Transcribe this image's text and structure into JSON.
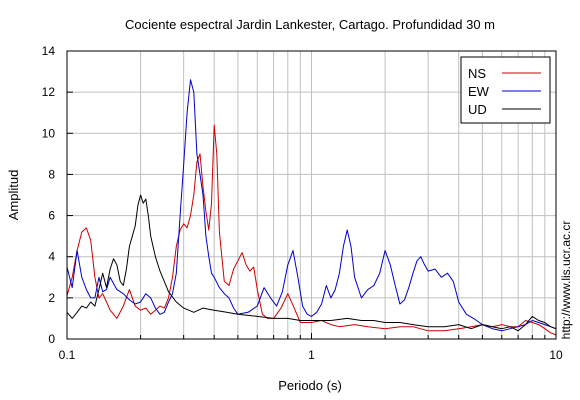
{
  "chart_data": {
    "type": "line",
    "title": "Cociente espectral Jardin Lankester, Cartago. Profundidad 30 m",
    "xlabel": "Periodo (s)",
    "ylabel": "Amplitud",
    "x_scale": "log",
    "xlim": [
      0.1,
      10
    ],
    "ylim": [
      0,
      14
    ],
    "x_ticks": [
      0.1,
      1,
      10
    ],
    "x_tick_labels": [
      "0.1",
      "1",
      "10"
    ],
    "y_ticks": [
      0,
      2,
      4,
      6,
      8,
      10,
      12,
      14
    ],
    "y_tick_labels": [
      "0",
      "2",
      "4",
      "6",
      "8",
      "10",
      "12",
      "14"
    ],
    "grid": true,
    "legend_position": "top-right",
    "watermark": "http://www.lis.ucr.ac.cr",
    "series": [
      {
        "name": "NS",
        "color": "#cc0000",
        "points": [
          [
            0.1,
            2.1
          ],
          [
            0.105,
            3.0
          ],
          [
            0.11,
            4.3
          ],
          [
            0.115,
            5.2
          ],
          [
            0.12,
            5.4
          ],
          [
            0.125,
            4.8
          ],
          [
            0.13,
            3.0
          ],
          [
            0.135,
            2.0
          ],
          [
            0.14,
            2.2
          ],
          [
            0.145,
            1.8
          ],
          [
            0.15,
            1.4
          ],
          [
            0.16,
            1.0
          ],
          [
            0.17,
            1.6
          ],
          [
            0.18,
            2.4
          ],
          [
            0.19,
            1.6
          ],
          [
            0.2,
            1.4
          ],
          [
            0.21,
            1.5
          ],
          [
            0.22,
            1.2
          ],
          [
            0.23,
            1.4
          ],
          [
            0.24,
            1.6
          ],
          [
            0.25,
            1.5
          ],
          [
            0.26,
            2.0
          ],
          [
            0.27,
            3.0
          ],
          [
            0.28,
            4.5
          ],
          [
            0.29,
            5.3
          ],
          [
            0.3,
            5.6
          ],
          [
            0.31,
            5.4
          ],
          [
            0.32,
            6.0
          ],
          [
            0.33,
            7.0
          ],
          [
            0.34,
            8.6
          ],
          [
            0.35,
            9.0
          ],
          [
            0.36,
            7.4
          ],
          [
            0.37,
            6.2
          ],
          [
            0.38,
            5.3
          ],
          [
            0.39,
            6.6
          ],
          [
            0.4,
            10.4
          ],
          [
            0.41,
            9.0
          ],
          [
            0.42,
            5.2
          ],
          [
            0.44,
            2.8
          ],
          [
            0.46,
            2.6
          ],
          [
            0.48,
            3.4
          ],
          [
            0.5,
            3.8
          ],
          [
            0.52,
            4.2
          ],
          [
            0.54,
            3.6
          ],
          [
            0.56,
            3.3
          ],
          [
            0.58,
            3.5
          ],
          [
            0.6,
            2.4
          ],
          [
            0.63,
            1.2
          ],
          [
            0.66,
            1.0
          ],
          [
            0.7,
            1.0
          ],
          [
            0.75,
            1.5
          ],
          [
            0.8,
            2.2
          ],
          [
            0.85,
            1.5
          ],
          [
            0.9,
            0.8
          ],
          [
            1.0,
            0.8
          ],
          [
            1.1,
            0.9
          ],
          [
            1.2,
            0.7
          ],
          [
            1.3,
            0.6
          ],
          [
            1.5,
            0.7
          ],
          [
            1.7,
            0.6
          ],
          [
            2.0,
            0.5
          ],
          [
            2.3,
            0.6
          ],
          [
            2.6,
            0.6
          ],
          [
            3.0,
            0.4
          ],
          [
            3.5,
            0.4
          ],
          [
            4.0,
            0.5
          ],
          [
            4.5,
            0.6
          ],
          [
            5.0,
            0.7
          ],
          [
            5.5,
            0.6
          ],
          [
            6.0,
            0.7
          ],
          [
            6.5,
            0.6
          ],
          [
            7.0,
            0.6
          ],
          [
            7.5,
            0.9
          ],
          [
            8.0,
            0.8
          ],
          [
            8.5,
            0.7
          ],
          [
            9.0,
            0.5
          ],
          [
            9.5,
            0.3
          ],
          [
            10.0,
            0.2
          ]
        ]
      },
      {
        "name": "EW",
        "color": "#0000cc",
        "points": [
          [
            0.1,
            3.5
          ],
          [
            0.105,
            2.5
          ],
          [
            0.11,
            4.3
          ],
          [
            0.115,
            3.0
          ],
          [
            0.12,
            2.4
          ],
          [
            0.125,
            2.0
          ],
          [
            0.13,
            2.0
          ],
          [
            0.135,
            3.0
          ],
          [
            0.14,
            2.3
          ],
          [
            0.145,
            2.4
          ],
          [
            0.15,
            3.0
          ],
          [
            0.16,
            2.4
          ],
          [
            0.17,
            2.2
          ],
          [
            0.18,
            1.9
          ],
          [
            0.19,
            1.7
          ],
          [
            0.2,
            1.8
          ],
          [
            0.21,
            2.2
          ],
          [
            0.22,
            2.0
          ],
          [
            0.23,
            1.5
          ],
          [
            0.24,
            1.2
          ],
          [
            0.25,
            1.3
          ],
          [
            0.26,
            1.8
          ],
          [
            0.27,
            2.2
          ],
          [
            0.28,
            3.2
          ],
          [
            0.29,
            6.0
          ],
          [
            0.3,
            8.5
          ],
          [
            0.31,
            11.0
          ],
          [
            0.32,
            12.6
          ],
          [
            0.33,
            12.0
          ],
          [
            0.34,
            9.0
          ],
          [
            0.35,
            8.0
          ],
          [
            0.36,
            7.0
          ],
          [
            0.37,
            5.0
          ],
          [
            0.38,
            4.0
          ],
          [
            0.39,
            3.2
          ],
          [
            0.4,
            3.0
          ],
          [
            0.42,
            2.5
          ],
          [
            0.44,
            2.2
          ],
          [
            0.46,
            2.0
          ],
          [
            0.48,
            1.5
          ],
          [
            0.5,
            1.2
          ],
          [
            0.55,
            1.3
          ],
          [
            0.6,
            1.6
          ],
          [
            0.64,
            2.5
          ],
          [
            0.68,
            2.0
          ],
          [
            0.72,
            1.6
          ],
          [
            0.76,
            2.3
          ],
          [
            0.8,
            3.6
          ],
          [
            0.84,
            4.3
          ],
          [
            0.88,
            3.0
          ],
          [
            0.92,
            1.6
          ],
          [
            0.96,
            1.2
          ],
          [
            1.0,
            1.1
          ],
          [
            1.05,
            1.3
          ],
          [
            1.1,
            1.7
          ],
          [
            1.15,
            2.6
          ],
          [
            1.2,
            2.0
          ],
          [
            1.25,
            2.4
          ],
          [
            1.3,
            3.2
          ],
          [
            1.35,
            4.5
          ],
          [
            1.4,
            5.3
          ],
          [
            1.45,
            4.5
          ],
          [
            1.5,
            3.0
          ],
          [
            1.6,
            2.0
          ],
          [
            1.7,
            2.4
          ],
          [
            1.8,
            2.6
          ],
          [
            1.9,
            3.2
          ],
          [
            2.0,
            4.3
          ],
          [
            2.1,
            3.6
          ],
          [
            2.2,
            2.6
          ],
          [
            2.3,
            1.7
          ],
          [
            2.4,
            1.9
          ],
          [
            2.5,
            2.5
          ],
          [
            2.6,
            3.2
          ],
          [
            2.7,
            3.8
          ],
          [
            2.8,
            4.0
          ],
          [
            2.9,
            3.6
          ],
          [
            3.0,
            3.3
          ],
          [
            3.2,
            3.4
          ],
          [
            3.4,
            3.0
          ],
          [
            3.6,
            3.2
          ],
          [
            3.8,
            2.8
          ],
          [
            4.0,
            1.8
          ],
          [
            4.3,
            1.2
          ],
          [
            4.6,
            1.0
          ],
          [
            5.0,
            0.7
          ],
          [
            5.5,
            0.5
          ],
          [
            6.0,
            0.4
          ],
          [
            6.5,
            0.5
          ],
          [
            7.0,
            0.6
          ],
          [
            7.5,
            0.7
          ],
          [
            8.0,
            0.9
          ],
          [
            8.5,
            0.8
          ],
          [
            9.0,
            0.7
          ],
          [
            9.5,
            0.6
          ],
          [
            10.0,
            0.5
          ]
        ]
      },
      {
        "name": "UD",
        "color": "#000000",
        "points": [
          [
            0.1,
            1.3
          ],
          [
            0.105,
            1.0
          ],
          [
            0.11,
            1.3
          ],
          [
            0.115,
            1.6
          ],
          [
            0.12,
            1.5
          ],
          [
            0.125,
            1.8
          ],
          [
            0.13,
            1.6
          ],
          [
            0.135,
            2.4
          ],
          [
            0.14,
            3.2
          ],
          [
            0.145,
            2.5
          ],
          [
            0.15,
            3.4
          ],
          [
            0.155,
            3.9
          ],
          [
            0.16,
            3.6
          ],
          [
            0.165,
            2.8
          ],
          [
            0.17,
            2.6
          ],
          [
            0.175,
            3.4
          ],
          [
            0.18,
            4.5
          ],
          [
            0.19,
            5.5
          ],
          [
            0.195,
            6.5
          ],
          [
            0.2,
            7.0
          ],
          [
            0.205,
            6.6
          ],
          [
            0.21,
            6.8
          ],
          [
            0.215,
            6.0
          ],
          [
            0.22,
            5.0
          ],
          [
            0.23,
            4.0
          ],
          [
            0.24,
            3.3
          ],
          [
            0.25,
            2.8
          ],
          [
            0.26,
            2.3
          ],
          [
            0.28,
            1.8
          ],
          [
            0.3,
            1.5
          ],
          [
            0.33,
            1.3
          ],
          [
            0.36,
            1.5
          ],
          [
            0.4,
            1.4
          ],
          [
            0.45,
            1.3
          ],
          [
            0.5,
            1.2
          ],
          [
            0.6,
            1.1
          ],
          [
            0.7,
            1.0
          ],
          [
            0.8,
            1.0
          ],
          [
            0.9,
            0.9
          ],
          [
            1.0,
            0.9
          ],
          [
            1.2,
            0.9
          ],
          [
            1.4,
            1.0
          ],
          [
            1.6,
            0.9
          ],
          [
            1.8,
            0.9
          ],
          [
            2.0,
            0.8
          ],
          [
            2.3,
            0.8
          ],
          [
            2.6,
            0.7
          ],
          [
            3.0,
            0.6
          ],
          [
            3.5,
            0.6
          ],
          [
            4.0,
            0.7
          ],
          [
            4.5,
            0.5
          ],
          [
            5.0,
            0.7
          ],
          [
            5.5,
            0.6
          ],
          [
            6.0,
            0.5
          ],
          [
            6.5,
            0.6
          ],
          [
            7.0,
            0.4
          ],
          [
            7.5,
            0.7
          ],
          [
            8.0,
            1.1
          ],
          [
            8.5,
            0.9
          ],
          [
            9.0,
            0.8
          ],
          [
            9.5,
            0.6
          ],
          [
            10.0,
            0.5
          ]
        ]
      }
    ]
  }
}
